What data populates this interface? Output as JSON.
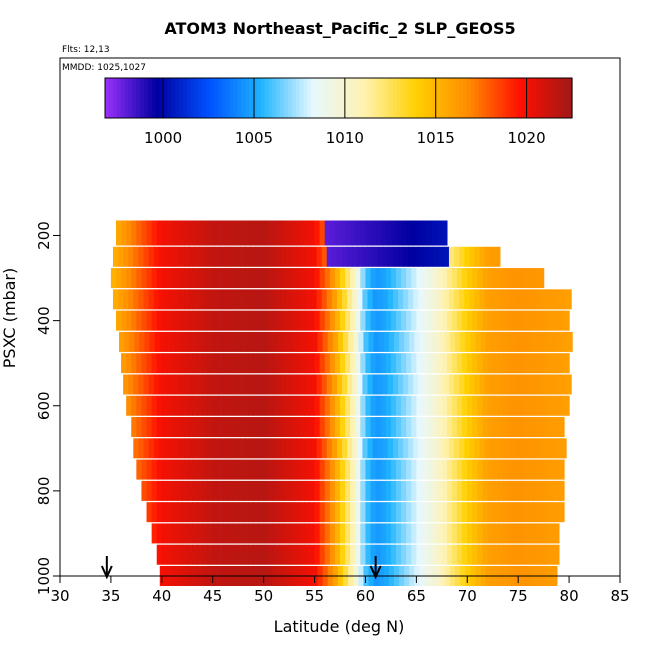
{
  "chart_data": {
    "type": "heatmap",
    "title": "ATOM3 Northeast_Pacific_2 SLP_GEOS5",
    "flights_label": "Flts: 12,13",
    "dates_label": "MMDD: 1025,1027",
    "xlabel": "Latitude (deg N)",
    "ylabel": "PSXC (mbar)",
    "xlim": [
      30,
      85
    ],
    "ylim": [
      1000,
      200
    ],
    "x_ticks": [
      "30",
      "35",
      "40",
      "45",
      "50",
      "55",
      "60",
      "65",
      "70",
      "75",
      "80",
      "85"
    ],
    "y_ticks": [
      "200",
      "400",
      "600",
      "800",
      "1000"
    ],
    "colorbar": {
      "range": [
        996.8,
        1022.5
      ],
      "ticks": [
        "1000",
        "1005",
        "1010",
        "1015",
        "1020"
      ],
      "colors": [
        "#9b30ff",
        "#0000a0",
        "#0050ff",
        "#1eb4ff",
        "#e6f8ff",
        "#fff2b0",
        "#ffd000",
        "#ff8c00",
        "#ff1000",
        "#a01818"
      ]
    },
    "arrows_at_latitude": [
      34.6,
      61.0
    ],
    "psxc_levels": [
      200,
      250,
      300,
      350,
      400,
      450,
      500,
      550,
      600,
      650,
      700,
      750,
      800,
      850,
      900,
      950,
      1000
    ],
    "latitude_extent_by_level": [
      [
        35.5,
        68.0
      ],
      [
        35.2,
        73.0
      ],
      [
        35.0,
        77.5
      ],
      [
        35.2,
        80.0
      ],
      [
        35.5,
        80.0
      ],
      [
        35.8,
        80.0
      ],
      [
        36.0,
        80.0
      ],
      [
        36.2,
        80.0
      ],
      [
        36.5,
        80.0
      ],
      [
        37.0,
        79.5
      ],
      [
        37.2,
        79.5
      ],
      [
        37.5,
        79.5
      ],
      [
        38.0,
        79.5
      ],
      [
        38.5,
        79.3
      ],
      [
        39.0,
        79.0
      ],
      [
        39.5,
        79.0
      ],
      [
        39.8,
        78.5
      ]
    ],
    "slp_profile": {
      "latitude": [
        35,
        38,
        40,
        45,
        50,
        55,
        57,
        59,
        60,
        61,
        62,
        64,
        67,
        70,
        72,
        75,
        80
      ],
      "slp": [
        1015,
        1018,
        1020,
        1021.5,
        1021.8,
        1020,
        1016,
        1010,
        1006,
        1004.5,
        1005,
        1007,
        1010,
        1014,
        1016,
        1016.5,
        1016
      ]
    }
  }
}
